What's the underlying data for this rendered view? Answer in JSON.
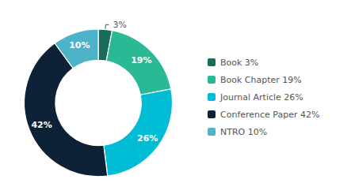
{
  "chart_data": {
    "type": "donut",
    "categories": [
      "Book 3%",
      "Book Chapter 19%",
      "Journal Article 26%",
      "Conference Paper 42%",
      "NTRO 10%"
    ],
    "values": [
      3,
      19,
      26,
      42,
      10
    ],
    "value_labels": [
      "3%",
      "19%",
      "26%",
      "42%",
      "10%"
    ],
    "colors": [
      "#1b6b5a",
      "#2ab995",
      "#00bcd4",
      "#0d2137",
      "#4db3c8"
    ],
    "data_labels": true,
    "legend": "right"
  }
}
